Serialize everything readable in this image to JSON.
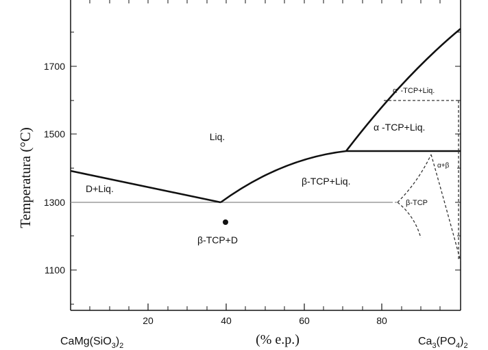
{
  "diagram": {
    "type": "phase-diagram",
    "left_component": {
      "base": "CaMg(SiO",
      "sub1": "3",
      "close": ")",
      "sub2": "2"
    },
    "right_component": {
      "base": "Ca",
      "sub1": "3",
      "mid": "(PO",
      "sub2": "4",
      "close": ")",
      "sub3": "2"
    },
    "xlabel": "(% e.p.)",
    "ylabel": "Temperatura (°C)",
    "x_ticks": [
      "20",
      "40",
      "60",
      "80"
    ],
    "y_ticks": [
      "1700",
      "1500",
      "1300",
      "1100"
    ],
    "region_labels": {
      "liq": "Liq.",
      "d_liq": "D+Liq.",
      "beta_tcp_liq": "β-TCP+Liq.",
      "alpha_tcp_liq": "α -TCP+Liq.",
      "alpha_prime_tcp_liq": "α' -TCP+Liq.",
      "alpha_beta": "α+β",
      "beta_tcp": "β-TCP",
      "beta_tcp_d": "β-TCP+D"
    },
    "eutectic": {
      "composition_pct": 38,
      "temperature_c": 1300
    },
    "peritectic": {
      "composition_pct": 70,
      "temperature_c": 1450
    },
    "data_point": {
      "composition_pct": 40,
      "temperature_c": 1240
    }
  }
}
